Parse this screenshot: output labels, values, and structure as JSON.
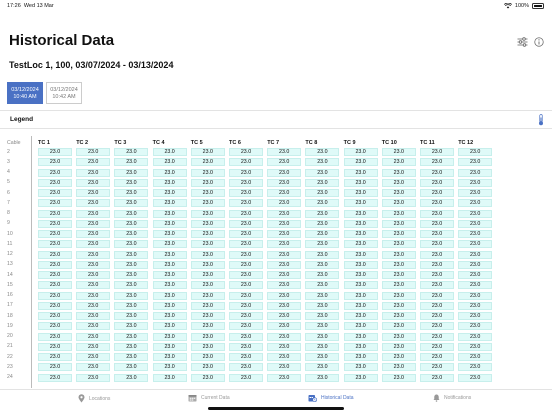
{
  "status_bar": {
    "time": "17:26",
    "date": "Wed 13 Mar",
    "battery": "100%"
  },
  "header": {
    "title": "Historical Data"
  },
  "subtitle": "TestLoc 1, 100, 03/07/2024 - 03/13/2024",
  "date_tabs": [
    {
      "date": "03/12/2024",
      "time": "10:40 AM",
      "active": true
    },
    {
      "date": "03/12/2024",
      "time": "10:42 AM",
      "active": false
    }
  ],
  "legend": {
    "label": "Legend"
  },
  "table": {
    "cable_header": "Cable",
    "columns": [
      "TC 1",
      "TC 2",
      "TC 3",
      "TC 4",
      "TC 5",
      "TC 6",
      "TC 7",
      "TC 8",
      "TC 9",
      "TC 10",
      "TC 11",
      "TC 12"
    ],
    "rows": [
      2,
      3,
      4,
      5,
      6,
      7,
      8,
      9,
      10,
      11,
      12,
      13,
      14,
      15,
      16,
      17,
      18,
      19,
      20,
      21,
      22,
      23,
      24
    ],
    "cell_value": "23.0",
    "cell_color": "#dffaf8"
  },
  "tab_bar": {
    "items": [
      {
        "label": "Locations",
        "icon": "map-pin-icon",
        "active": false
      },
      {
        "label": "Current Data",
        "icon": "calendar-icon",
        "active": false
      },
      {
        "label": "Historical Data",
        "icon": "history-icon",
        "active": true
      },
      {
        "label": "Notifications",
        "icon": "bell-icon",
        "active": false
      }
    ]
  },
  "colors": {
    "accent": "#4a71c4",
    "cell_fill": "#dffaf8"
  }
}
